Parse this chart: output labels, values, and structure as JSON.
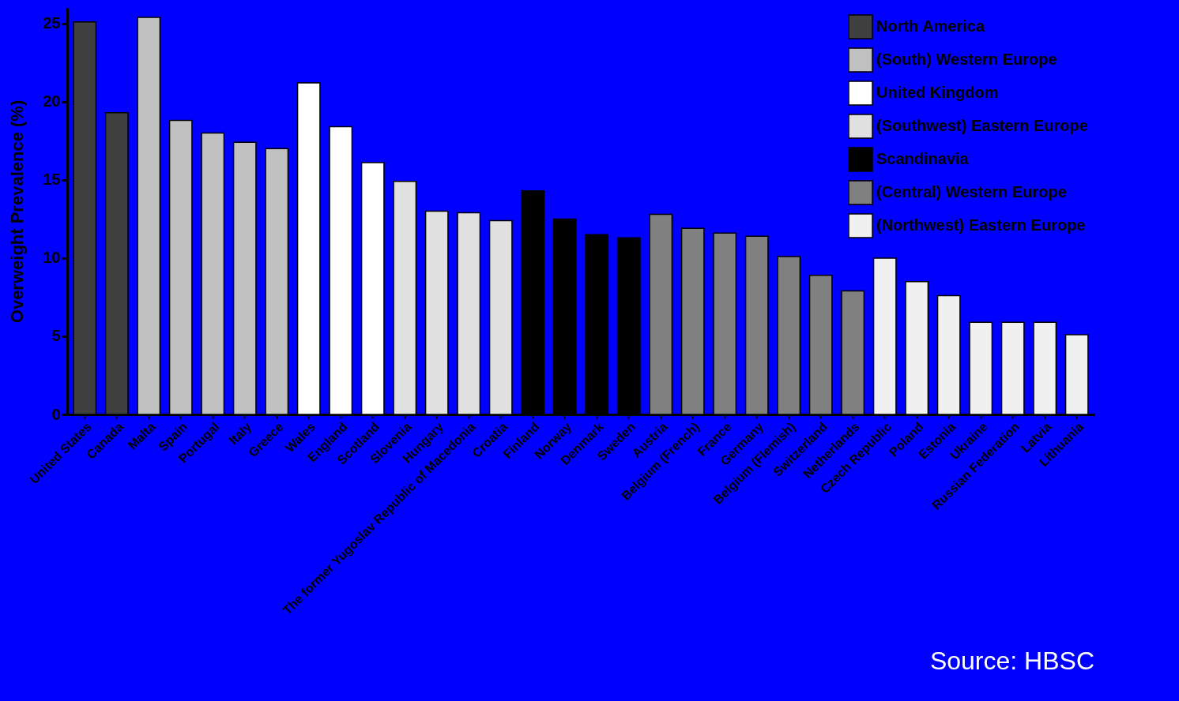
{
  "chart_data": {
    "type": "bar",
    "ylabel": "Overweight Prevalence (%)",
    "categories": [
      "United States",
      "Canada",
      "Malta",
      "Spain",
      "Portugal",
      "Italy",
      "Greece",
      "Wales",
      "England",
      "Scotland",
      "Slovenia",
      "Hungary",
      "The former Yugoslav Republic of Macedonia",
      "Croatia",
      "Finland",
      "Norway",
      "Denmark",
      "Sweden",
      "Austria",
      "Belgium (French)",
      "France",
      "Germany",
      "Belgium (Flemish)",
      "Switzerland",
      "Netherlands",
      "Czech Republic",
      "Poland",
      "Estonia",
      "Ukraine",
      "Russian Federation",
      "Latvia",
      "Lithuania"
    ],
    "series": [
      {
        "name": "North America",
        "color": "#404040",
        "values": [
          25.1,
          19.3,
          null,
          null,
          null,
          null,
          null,
          null,
          null,
          null,
          null,
          null,
          null,
          null,
          null,
          null,
          null,
          null,
          null,
          null,
          null,
          null,
          null,
          null,
          null,
          null,
          null,
          null,
          null,
          null,
          null,
          null
        ]
      },
      {
        "name": "(South) Western Europe",
        "color": "#c0c0c0",
        "values": [
          null,
          null,
          25.4,
          18.8,
          18.0,
          17.4,
          17.0,
          null,
          null,
          null,
          null,
          null,
          null,
          null,
          null,
          null,
          null,
          null,
          null,
          null,
          null,
          null,
          null,
          null,
          null,
          null,
          null,
          null,
          null,
          null,
          null,
          null
        ]
      },
      {
        "name": "United Kingdom",
        "color": "#ffffff",
        "values": [
          null,
          null,
          null,
          null,
          null,
          null,
          null,
          21.2,
          18.4,
          16.1,
          null,
          null,
          null,
          null,
          null,
          null,
          null,
          null,
          null,
          null,
          null,
          null,
          null,
          null,
          null,
          null,
          null,
          null,
          null,
          null,
          null,
          null
        ]
      },
      {
        "name": "(Southwest) Eastern Europe",
        "color": "#e0e0e0",
        "values": [
          null,
          null,
          null,
          null,
          null,
          null,
          null,
          null,
          null,
          null,
          14.9,
          13.0,
          12.9,
          12.4,
          null,
          null,
          null,
          null,
          null,
          null,
          null,
          null,
          null,
          null,
          null,
          null,
          null,
          null,
          null,
          null,
          null,
          null
        ]
      },
      {
        "name": "Scandinavia",
        "color": "#000000",
        "values": [
          null,
          null,
          null,
          null,
          null,
          null,
          null,
          null,
          null,
          null,
          null,
          null,
          null,
          null,
          14.3,
          12.5,
          11.5,
          11.3,
          null,
          null,
          null,
          null,
          null,
          null,
          null,
          null,
          null,
          null,
          null,
          null,
          null,
          null
        ]
      },
      {
        "name": "(Central) Western Europe",
        "color": "#808080",
        "values": [
          null,
          null,
          null,
          null,
          null,
          null,
          null,
          null,
          null,
          null,
          null,
          null,
          null,
          null,
          null,
          null,
          null,
          null,
          12.8,
          11.9,
          11.6,
          11.4,
          10.1,
          8.9,
          7.9,
          null,
          null,
          null,
          null,
          null,
          null,
          null
        ]
      },
      {
        "name": "(Northwest) Eastern Europe",
        "color": "#f0f0f0",
        "values": [
          null,
          null,
          null,
          null,
          null,
          null,
          null,
          null,
          null,
          null,
          null,
          null,
          null,
          null,
          null,
          null,
          null,
          null,
          null,
          null,
          null,
          null,
          null,
          null,
          null,
          10.0,
          8.5,
          7.6,
          5.9,
          5.9,
          5.9,
          5.1
        ]
      }
    ],
    "ylim": [
      0,
      26
    ],
    "yticks": [
      0,
      5,
      10,
      15,
      20,
      25
    ],
    "grid": false,
    "legend": "top right",
    "annotations": [
      "Source: HBSC"
    ]
  }
}
